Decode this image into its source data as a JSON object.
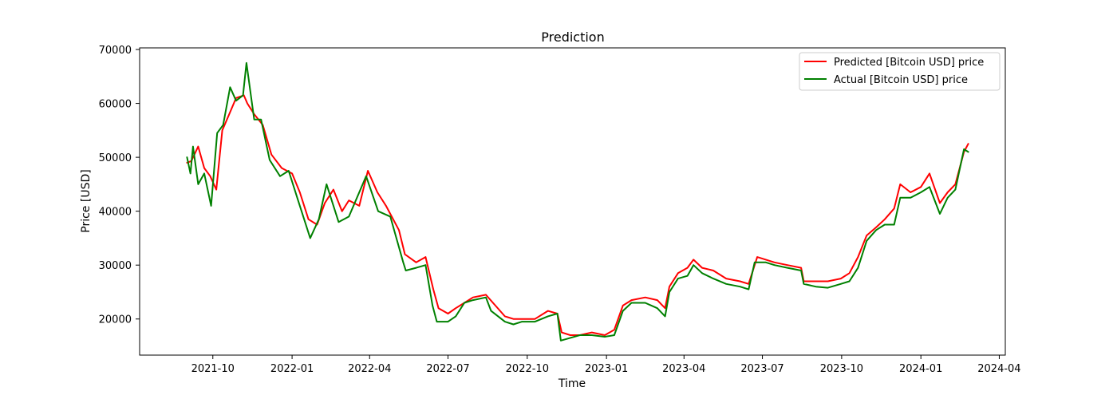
{
  "chart_data": {
    "type": "line",
    "title": "Prediction",
    "xlabel": "Time",
    "ylabel": "Price [USD]",
    "x_ticks": [
      "2021-10",
      "2022-01",
      "2022-04",
      "2022-07",
      "2022-10",
      "2023-01",
      "2023-04",
      "2023-07",
      "2023-10",
      "2024-01",
      "2024-04"
    ],
    "y_ticks": [
      20000,
      30000,
      40000,
      50000,
      60000,
      70000
    ],
    "xlim": [
      "2021-07-08",
      "2024-04-08"
    ],
    "ylim": [
      13300,
      70300
    ],
    "grid": false,
    "legend_position": "top-right",
    "series": [
      {
        "name": "Predicted [Bitcoin USD] price",
        "color": "#ff0000",
        "x": [
          "2021-09-01",
          "2021-09-06",
          "2021-09-14",
          "2021-09-21",
          "2021-09-28",
          "2021-10-05",
          "2021-10-12",
          "2021-10-20",
          "2021-10-28",
          "2021-11-06",
          "2021-11-10",
          "2021-11-18",
          "2021-11-28",
          "2021-12-08",
          "2021-12-20",
          "2022-01-01",
          "2022-01-10",
          "2022-01-20",
          "2022-01-30",
          "2022-02-08",
          "2022-02-18",
          "2022-02-28",
          "2022-03-08",
          "2022-03-20",
          "2022-03-30",
          "2022-04-10",
          "2022-04-20",
          "2022-05-05",
          "2022-05-12",
          "2022-05-25",
          "2022-06-05",
          "2022-06-14",
          "2022-06-20",
          "2022-07-01",
          "2022-07-10",
          "2022-07-20",
          "2022-07-30",
          "2022-08-14",
          "2022-08-25",
          "2022-09-05",
          "2022-09-15",
          "2022-09-25",
          "2022-10-10",
          "2022-10-25",
          "2022-11-05",
          "2022-11-10",
          "2022-11-20",
          "2022-12-01",
          "2022-12-15",
          "2022-12-30",
          "2023-01-10",
          "2023-01-20",
          "2023-01-30",
          "2023-02-15",
          "2023-03-01",
          "2023-03-10",
          "2023-03-15",
          "2023-03-25",
          "2023-04-05",
          "2023-04-12",
          "2023-04-22",
          "2023-05-05",
          "2023-05-20",
          "2023-06-05",
          "2023-06-15",
          "2023-06-25",
          "2023-07-05",
          "2023-07-15",
          "2023-07-30",
          "2023-08-15",
          "2023-08-18",
          "2023-09-01",
          "2023-09-15",
          "2023-09-30",
          "2023-10-10",
          "2023-10-20",
          "2023-10-30",
          "2023-11-10",
          "2023-11-20",
          "2023-12-01",
          "2023-12-08",
          "2023-12-20",
          "2024-01-01",
          "2024-01-11",
          "2024-01-23",
          "2024-02-01",
          "2024-02-10",
          "2024-02-20",
          "2024-02-25"
        ],
        "y": [
          49000,
          49300,
          52000,
          48000,
          46500,
          44000,
          55000,
          58000,
          61000,
          61500,
          60000,
          58000,
          56000,
          50500,
          48000,
          47000,
          43500,
          38500,
          37500,
          41500,
          44000,
          40000,
          42000,
          41000,
          47500,
          43500,
          41000,
          36500,
          32000,
          30500,
          31500,
          25500,
          22000,
          21000,
          22000,
          23000,
          24000,
          24500,
          22500,
          20500,
          20000,
          20000,
          20000,
          21500,
          21000,
          17500,
          17000,
          17000,
          17500,
          17000,
          18000,
          22500,
          23500,
          24000,
          23500,
          22000,
          26000,
          28500,
          29500,
          31000,
          29500,
          29000,
          27500,
          27000,
          26500,
          31500,
          31000,
          30500,
          30000,
          29500,
          27000,
          27000,
          27000,
          27500,
          28500,
          31500,
          35500,
          37000,
          38500,
          40500,
          45000,
          43500,
          44500,
          47000,
          41500,
          43500,
          45000,
          51000,
          52500
        ]
      },
      {
        "name": "Actual [Bitcoin USD] price",
        "color": "#008000",
        "x": [
          "2021-09-01",
          "2021-09-05",
          "2021-09-08",
          "2021-09-14",
          "2021-09-21",
          "2021-09-29",
          "2021-10-06",
          "2021-10-13",
          "2021-10-21",
          "2021-10-28",
          "2021-11-05",
          "2021-11-09",
          "2021-11-18",
          "2021-11-26",
          "2021-12-06",
          "2021-12-18",
          "2021-12-28",
          "2022-01-08",
          "2022-01-22",
          "2022-02-01",
          "2022-02-10",
          "2022-02-24",
          "2022-03-08",
          "2022-03-28",
          "2022-04-11",
          "2022-04-25",
          "2022-05-10",
          "2022-05-13",
          "2022-05-25",
          "2022-06-05",
          "2022-06-13",
          "2022-06-18",
          "2022-07-01",
          "2022-07-10",
          "2022-07-20",
          "2022-07-30",
          "2022-08-14",
          "2022-08-20",
          "2022-09-05",
          "2022-09-15",
          "2022-09-25",
          "2022-10-10",
          "2022-10-25",
          "2022-11-05",
          "2022-11-09",
          "2022-11-20",
          "2022-12-01",
          "2022-12-15",
          "2022-12-30",
          "2023-01-10",
          "2023-01-20",
          "2023-01-30",
          "2023-02-15",
          "2023-03-01",
          "2023-03-10",
          "2023-03-15",
          "2023-03-25",
          "2023-04-05",
          "2023-04-12",
          "2023-04-22",
          "2023-05-05",
          "2023-05-20",
          "2023-06-05",
          "2023-06-15",
          "2023-06-22",
          "2023-07-05",
          "2023-07-15",
          "2023-07-30",
          "2023-08-15",
          "2023-08-18",
          "2023-09-01",
          "2023-09-15",
          "2023-09-30",
          "2023-10-10",
          "2023-10-20",
          "2023-10-30",
          "2023-11-10",
          "2023-11-20",
          "2023-12-01",
          "2023-12-08",
          "2023-12-20",
          "2024-01-01",
          "2024-01-11",
          "2024-01-23",
          "2024-02-01",
          "2024-02-10",
          "2024-02-20",
          "2024-02-25"
        ],
        "y": [
          50000,
          47000,
          52000,
          45000,
          47000,
          41000,
          54500,
          56000,
          63000,
          60500,
          61500,
          67500,
          57000,
          57000,
          49500,
          46500,
          47500,
          42000,
          35000,
          38500,
          45000,
          38000,
          39000,
          46500,
          40000,
          39000,
          30500,
          29000,
          29500,
          30000,
          22500,
          19500,
          19500,
          20500,
          23000,
          23500,
          24000,
          21500,
          19500,
          19000,
          19500,
          19500,
          20500,
          21000,
          16000,
          16500,
          17000,
          17000,
          16700,
          17000,
          21500,
          23000,
          23000,
          22000,
          20500,
          25000,
          27500,
          28000,
          30000,
          28500,
          27500,
          26500,
          26000,
          25500,
          30500,
          30500,
          30000,
          29500,
          29000,
          26500,
          26000,
          25800,
          26500,
          27000,
          29500,
          34500,
          36500,
          37500,
          37500,
          42500,
          42500,
          43500,
          44500,
          39500,
          42500,
          44000,
          51500,
          51000
        ]
      }
    ]
  }
}
